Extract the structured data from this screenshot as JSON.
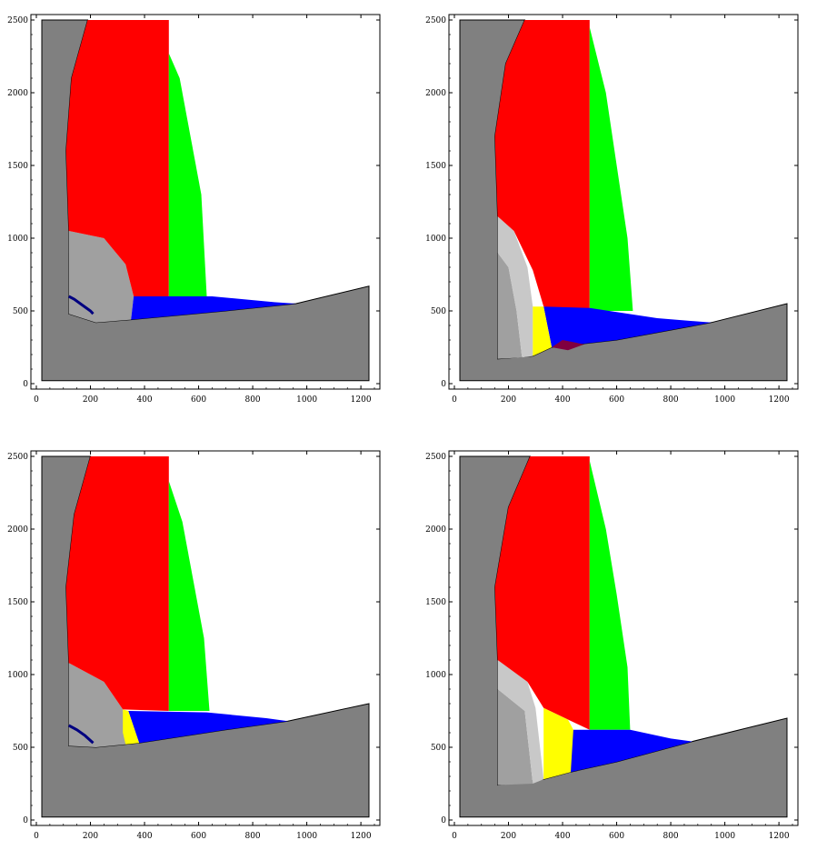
{
  "colors": {
    "rock": "#808080",
    "zone_red": "#ff0000",
    "zone_green": "#00ff00",
    "zone_blue": "#0000ff",
    "zone_yellow": "#ffff00",
    "zone_lightgray": "#a0a0a0",
    "zone_silver": "#c8c8c8",
    "zone_maroon": "#800040",
    "zone_navy": "#000080",
    "zone_teal": "#2080a0",
    "background": "#ffffff",
    "outline": "#000000"
  },
  "chart_data": [
    {
      "type": "heatmap",
      "panel": "top-left",
      "xlim": [
        0,
        1250
      ],
      "ylim": [
        0,
        2500
      ],
      "x_ticks": [
        "0",
        "200",
        "400",
        "600",
        "800",
        "1000",
        "1200"
      ],
      "y_ticks": [
        "0",
        "500",
        "1000",
        "1500",
        "2000",
        "2500"
      ],
      "regions": {
        "red": [
          [
            120,
            2500
          ],
          [
            200,
            2500
          ],
          [
            200,
            2500
          ],
          [
            490,
            2500
          ],
          [
            490,
            600
          ],
          [
            360,
            600
          ],
          [
            330,
            820
          ],
          [
            250,
            1000
          ],
          [
            120,
            1050
          ],
          [
            110,
            1600
          ],
          [
            130,
            2100
          ],
          [
            190,
            2500
          ]
        ],
        "green": [
          [
            490,
            2270
          ],
          [
            530,
            2100
          ],
          [
            570,
            1700
          ],
          [
            610,
            1300
          ],
          [
            630,
            600
          ],
          [
            490,
            600
          ]
        ],
        "blue": [
          [
            360,
            600
          ],
          [
            650,
            600
          ],
          [
            880,
            560
          ],
          [
            960,
            550
          ],
          [
            700,
            500
          ],
          [
            350,
            440
          ]
        ],
        "lightgray": [
          [
            120,
            1050
          ],
          [
            250,
            1000
          ],
          [
            330,
            820
          ],
          [
            360,
            600
          ],
          [
            350,
            440
          ],
          [
            220,
            420
          ],
          [
            120,
            480
          ]
        ],
        "navy": [
          [
            120,
            600
          ],
          [
            140,
            580
          ],
          [
            170,
            540
          ],
          [
            200,
            500
          ],
          [
            210,
            480
          ]
        ],
        "rock_floor": [
          [
            20,
            20
          ],
          [
            1230,
            20
          ],
          [
            1230,
            670
          ],
          [
            960,
            550
          ],
          [
            700,
            500
          ],
          [
            350,
            440
          ],
          [
            220,
            420
          ],
          [
            120,
            480
          ],
          [
            120,
            1050
          ],
          [
            110,
            1600
          ],
          [
            130,
            2100
          ],
          [
            190,
            2500
          ],
          [
            20,
            2500
          ]
        ]
      }
    },
    {
      "type": "heatmap",
      "panel": "top-right",
      "xlim": [
        0,
        1250
      ],
      "ylim": [
        0,
        2500
      ],
      "x_ticks": [
        "0",
        "200",
        "400",
        "600",
        "800",
        "1000",
        "1200"
      ],
      "y_ticks": [
        "0",
        "500",
        "1000",
        "1500",
        "2000",
        "2500"
      ],
      "regions": {
        "red": [
          [
            160,
            1150
          ],
          [
            150,
            1700
          ],
          [
            190,
            2200
          ],
          [
            260,
            2500
          ],
          [
            500,
            2500
          ],
          [
            500,
            500
          ],
          [
            330,
            530
          ],
          [
            290,
            780
          ],
          [
            220,
            1050
          ]
        ],
        "green": [
          [
            500,
            2450
          ],
          [
            560,
            2000
          ],
          [
            600,
            1500
          ],
          [
            640,
            1000
          ],
          [
            660,
            500
          ],
          [
            500,
            500
          ]
        ],
        "blue": [
          [
            330,
            530
          ],
          [
            500,
            520
          ],
          [
            750,
            450
          ],
          [
            950,
            420
          ],
          [
            600,
            300
          ],
          [
            360,
            250
          ]
        ],
        "yellow": [
          [
            290,
            530
          ],
          [
            330,
            530
          ],
          [
            360,
            250
          ],
          [
            290,
            190
          ]
        ],
        "maroon": [
          [
            360,
            250
          ],
          [
            420,
            230
          ],
          [
            480,
            270
          ],
          [
            400,
            300
          ]
        ],
        "silver": [
          [
            160,
            1150
          ],
          [
            220,
            1050
          ],
          [
            270,
            800
          ],
          [
            290,
            530
          ],
          [
            290,
            190
          ],
          [
            250,
            180
          ],
          [
            230,
            500
          ],
          [
            200,
            800
          ],
          [
            160,
            900
          ]
        ],
        "lightgray": [
          [
            160,
            900
          ],
          [
            200,
            800
          ],
          [
            230,
            500
          ],
          [
            250,
            180
          ],
          [
            160,
            170
          ]
        ],
        "rock_floor": [
          [
            20,
            20
          ],
          [
            1230,
            20
          ],
          [
            1230,
            550
          ],
          [
            950,
            420
          ],
          [
            600,
            300
          ],
          [
            360,
            250
          ],
          [
            290,
            190
          ],
          [
            160,
            170
          ],
          [
            160,
            1150
          ],
          [
            150,
            1700
          ],
          [
            190,
            2200
          ],
          [
            260,
            2500
          ],
          [
            20,
            2500
          ]
        ]
      }
    },
    {
      "type": "heatmap",
      "panel": "bottom-left",
      "xlim": [
        0,
        1250
      ],
      "ylim": [
        0,
        2500
      ],
      "x_ticks": [
        "0",
        "200",
        "400",
        "600",
        "800",
        "1000",
        "1200"
      ],
      "y_ticks": [
        "0",
        "500",
        "1000",
        "1500",
        "2000",
        "2500"
      ],
      "regions": {
        "red": [
          [
            120,
            1080
          ],
          [
            110,
            1600
          ],
          [
            140,
            2100
          ],
          [
            200,
            2500
          ],
          [
            490,
            2500
          ],
          [
            490,
            750
          ],
          [
            320,
            760
          ],
          [
            250,
            950
          ]
        ],
        "green": [
          [
            490,
            2330
          ],
          [
            540,
            2050
          ],
          [
            580,
            1650
          ],
          [
            620,
            1250
          ],
          [
            640,
            750
          ],
          [
            490,
            750
          ]
        ],
        "blue": [
          [
            340,
            750
          ],
          [
            630,
            740
          ],
          [
            850,
            700
          ],
          [
            930,
            680
          ],
          [
            700,
            620
          ],
          [
            380,
            530
          ]
        ],
        "yellow": [
          [
            320,
            760
          ],
          [
            340,
            750
          ],
          [
            380,
            530
          ],
          [
            330,
            520
          ],
          [
            320,
            600
          ]
        ],
        "lightgray": [
          [
            120,
            1080
          ],
          [
            250,
            950
          ],
          [
            320,
            760
          ],
          [
            330,
            520
          ],
          [
            220,
            500
          ],
          [
            120,
            510
          ]
        ],
        "navy": [
          [
            120,
            650
          ],
          [
            150,
            620
          ],
          [
            180,
            580
          ],
          [
            210,
            530
          ]
        ],
        "rock_floor": [
          [
            20,
            20
          ],
          [
            1230,
            20
          ],
          [
            1230,
            800
          ],
          [
            930,
            680
          ],
          [
            700,
            620
          ],
          [
            380,
            530
          ],
          [
            330,
            520
          ],
          [
            220,
            500
          ],
          [
            120,
            510
          ],
          [
            120,
            1080
          ],
          [
            110,
            1600
          ],
          [
            140,
            2100
          ],
          [
            200,
            2500
          ],
          [
            20,
            2500
          ]
        ]
      }
    },
    {
      "type": "heatmap",
      "panel": "bottom-right",
      "xlim": [
        0,
        1250
      ],
      "ylim": [
        0,
        2500
      ],
      "x_ticks": [
        "0",
        "200",
        "400",
        "600",
        "800",
        "1000",
        "1200"
      ],
      "y_ticks": [
        "0",
        "500",
        "1000",
        "1500",
        "2000",
        "2500"
      ],
      "regions": {
        "red": [
          [
            160,
            1100
          ],
          [
            150,
            1600
          ],
          [
            200,
            2150
          ],
          [
            280,
            2500
          ],
          [
            500,
            2500
          ],
          [
            500,
            620
          ],
          [
            330,
            770
          ],
          [
            270,
            950
          ]
        ],
        "green": [
          [
            500,
            2470
          ],
          [
            560,
            2000
          ],
          [
            600,
            1550
          ],
          [
            640,
            1050
          ],
          [
            650,
            620
          ],
          [
            500,
            620
          ]
        ],
        "blue": [
          [
            430,
            620
          ],
          [
            650,
            620
          ],
          [
            800,
            560
          ],
          [
            880,
            540
          ],
          [
            600,
            400
          ],
          [
            430,
            330
          ]
        ],
        "yellow": [
          [
            330,
            770
          ],
          [
            420,
            690
          ],
          [
            440,
            620
          ],
          [
            430,
            330
          ],
          [
            330,
            280
          ]
        ],
        "silver": [
          [
            160,
            1100
          ],
          [
            270,
            950
          ],
          [
            300,
            770
          ],
          [
            330,
            280
          ],
          [
            290,
            250
          ],
          [
            260,
            750
          ],
          [
            160,
            900
          ]
        ],
        "lightgray": [
          [
            160,
            900
          ],
          [
            260,
            750
          ],
          [
            290,
            250
          ],
          [
            160,
            240
          ]
        ],
        "rock_floor": [
          [
            20,
            20
          ],
          [
            1230,
            20
          ],
          [
            1230,
            700
          ],
          [
            880,
            540
          ],
          [
            600,
            400
          ],
          [
            430,
            330
          ],
          [
            330,
            280
          ],
          [
            160,
            240
          ],
          [
            160,
            1100
          ],
          [
            150,
            1600
          ],
          [
            200,
            2150
          ],
          [
            280,
            2500
          ],
          [
            20,
            2500
          ]
        ]
      }
    }
  ]
}
